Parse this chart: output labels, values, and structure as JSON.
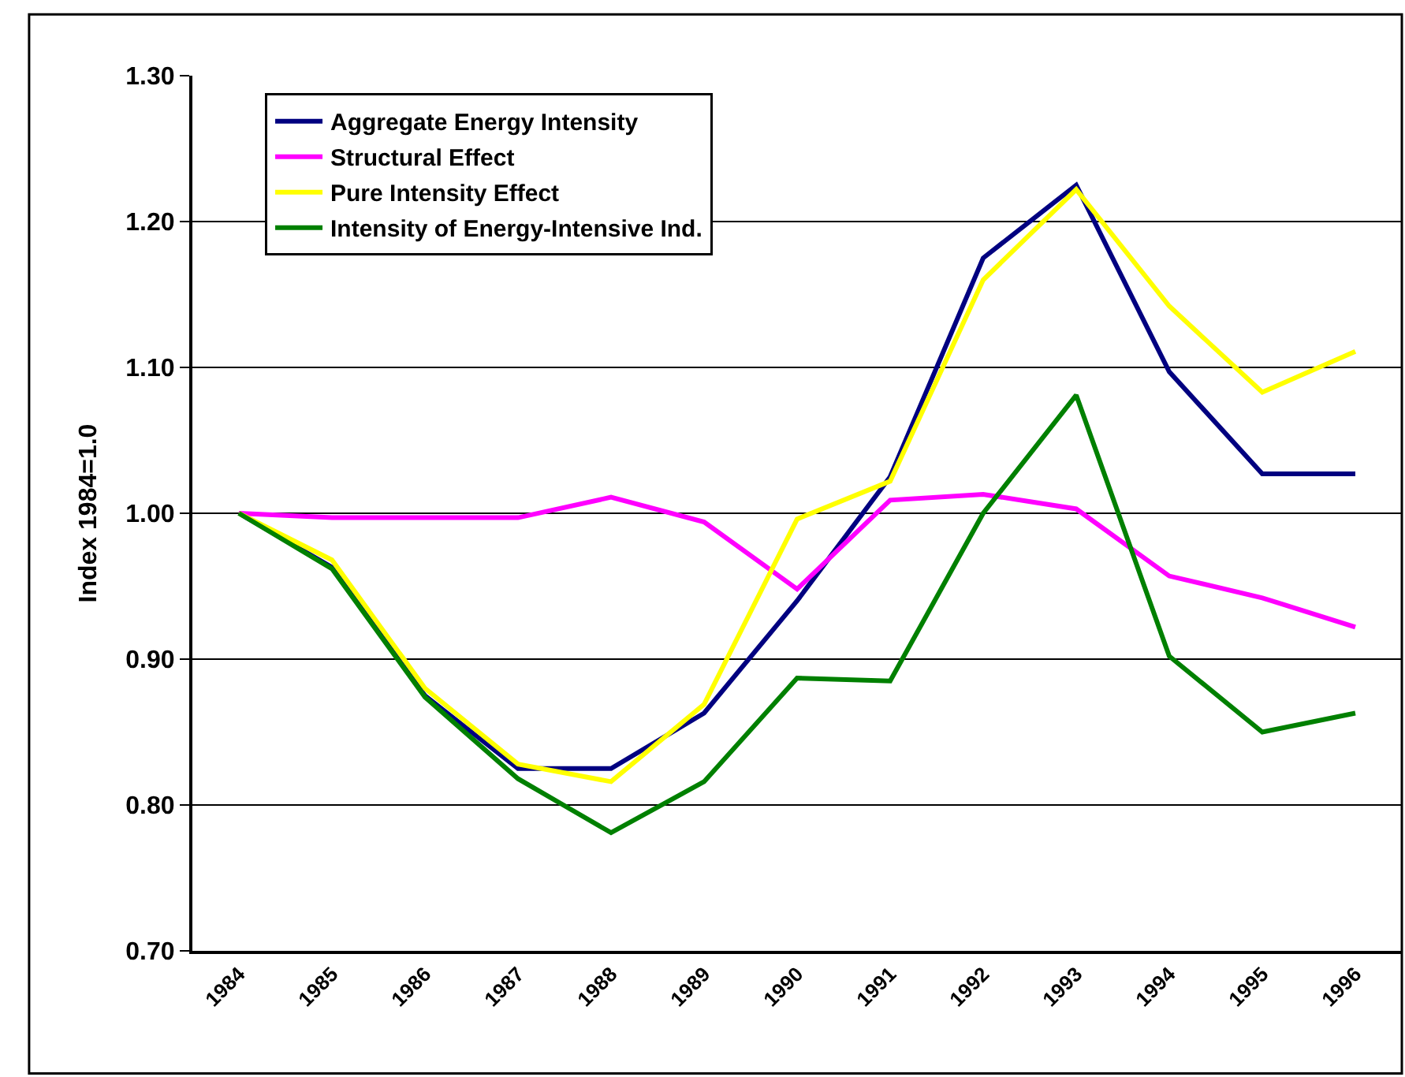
{
  "chart_data": {
    "type": "line",
    "ylabel": "Index 1984=1.0",
    "categories": [
      "1984",
      "1985",
      "1986",
      "1987",
      "1988",
      "1989",
      "1990",
      "1991",
      "1992",
      "1993",
      "1994",
      "1995",
      "1996"
    ],
    "series": [
      {
        "name": "Aggregate Energy Intensity",
        "color": "#000080",
        "values": [
          1.0,
          0.963,
          0.875,
          0.825,
          0.825,
          0.863,
          0.94,
          1.025,
          1.175,
          1.225,
          1.097,
          1.027,
          1.027
        ]
      },
      {
        "name": "Structural Effect",
        "color": "#ff00ff",
        "values": [
          1.0,
          0.997,
          0.997,
          0.997,
          1.011,
          0.994,
          0.948,
          1.009,
          1.013,
          1.003,
          0.957,
          0.942,
          0.922
        ]
      },
      {
        "name": "Pure Intensity Effect",
        "color": "#ffff00",
        "values": [
          1.0,
          0.968,
          0.88,
          0.828,
          0.816,
          0.869,
          0.996,
          1.022,
          1.16,
          1.222,
          1.142,
          1.083,
          1.111
        ]
      },
      {
        "name": "Intensity of Energy-Intensive Ind.",
        "color": "#008000",
        "values": [
          1.0,
          0.962,
          0.874,
          0.818,
          0.781,
          0.816,
          0.887,
          0.885,
          1.0,
          1.081,
          0.902,
          0.85,
          0.863
        ]
      }
    ],
    "ylim": [
      0.7,
      1.3
    ],
    "yticks": [
      {
        "value": 0.7,
        "label": "0.70"
      },
      {
        "value": 0.8,
        "label": "0.80"
      },
      {
        "value": 0.9,
        "label": "0.90"
      },
      {
        "value": 1.0,
        "label": "1.00"
      },
      {
        "value": 1.1,
        "label": "1.10"
      },
      {
        "value": 1.2,
        "label": "1.20"
      },
      {
        "value": 1.3,
        "label": "1.30"
      }
    ],
    "grid": "y",
    "legend": "top left",
    "marker": "none",
    "line_style": "solid"
  }
}
